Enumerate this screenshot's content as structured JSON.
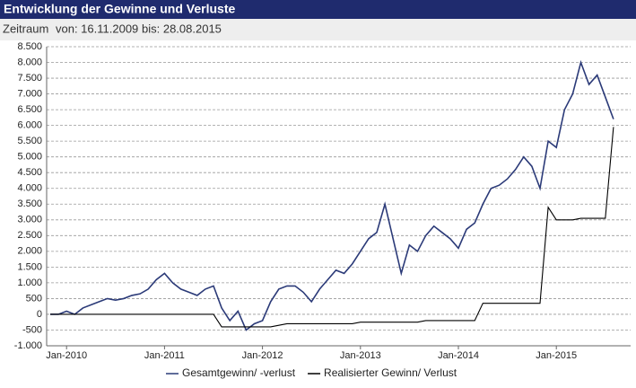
{
  "chart_data": {
    "type": "line",
    "title": "Entwicklung der Gewinne und Verluste",
    "period_label": "Zeitraum",
    "from": "von: 16.11.2009",
    "to": "bis: 28.08.2015",
    "x": [
      "Nov-2009",
      "Dec-2009",
      "Jan-2010",
      "Feb-2010",
      "Mar-2010",
      "Apr-2010",
      "May-2010",
      "Jun-2010",
      "Jul-2010",
      "Aug-2010",
      "Sep-2010",
      "Oct-2010",
      "Nov-2010",
      "Dec-2010",
      "Jan-2011",
      "Feb-2011",
      "Mar-2011",
      "Apr-2011",
      "May-2011",
      "Jun-2011",
      "Jul-2011",
      "Aug-2011",
      "Sep-2011",
      "Oct-2011",
      "Nov-2011",
      "Dec-2011",
      "Jan-2012",
      "Feb-2012",
      "Mar-2012",
      "Apr-2012",
      "May-2012",
      "Jun-2012",
      "Jul-2012",
      "Aug-2012",
      "Sep-2012",
      "Oct-2012",
      "Nov-2012",
      "Dec-2012",
      "Jan-2013",
      "Feb-2013",
      "Mar-2013",
      "Apr-2013",
      "May-2013",
      "Jun-2013",
      "Jul-2013",
      "Aug-2013",
      "Sep-2013",
      "Oct-2013",
      "Nov-2013",
      "Dec-2013",
      "Jan-2014",
      "Feb-2014",
      "Mar-2014",
      "Apr-2014",
      "May-2014",
      "Jun-2014",
      "Jul-2014",
      "Aug-2014",
      "Sep-2014",
      "Oct-2014",
      "Nov-2014",
      "Dec-2014",
      "Jan-2015",
      "Feb-2015",
      "Mar-2015",
      "Apr-2015",
      "May-2015",
      "Jun-2015",
      "Jul-2015",
      "Aug-2015"
    ],
    "series": [
      {
        "name": "Gesamtgewinn/ -verlust",
        "color": "#2b3a78",
        "values": [
          0,
          0,
          100,
          0,
          200,
          300,
          400,
          500,
          450,
          500,
          600,
          650,
          800,
          1100,
          1300,
          1000,
          800,
          700,
          600,
          800,
          900,
          200,
          -200,
          100,
          -500,
          -300,
          -200,
          400,
          800,
          900,
          900,
          700,
          400,
          800,
          1100,
          1400,
          1300,
          1600,
          2000,
          2400,
          2600,
          3500,
          2400,
          1300,
          2200,
          2000,
          2500,
          2800,
          2600,
          2400,
          2100,
          2700,
          2900,
          3500,
          4000,
          4100,
          4300,
          4600,
          5000,
          4700,
          4000,
          5500,
          5300,
          6500,
          7000,
          8000,
          7300,
          7600,
          6900,
          6200
        ]
      },
      {
        "name": "Realisierter Gewinn/ Verlust",
        "color": "#000000",
        "values": [
          0,
          0,
          0,
          0,
          0,
          0,
          0,
          0,
          0,
          0,
          0,
          0,
          0,
          0,
          0,
          0,
          0,
          0,
          0,
          0,
          0,
          -400,
          -400,
          -400,
          -400,
          -400,
          -400,
          -400,
          -350,
          -300,
          -300,
          -300,
          -300,
          -300,
          -300,
          -300,
          -300,
          -300,
          -250,
          -250,
          -250,
          -250,
          -250,
          -250,
          -250,
          -250,
          -200,
          -200,
          -200,
          -200,
          -200,
          -200,
          -200,
          350,
          350,
          350,
          350,
          350,
          350,
          350,
          350,
          3400,
          3000,
          3000,
          3000,
          3050,
          3050,
          3050,
          3050,
          5950
        ]
      }
    ],
    "ylim": [
      -1000,
      8500
    ],
    "yticks": [
      {
        "value": -1000,
        "label": "-1.000"
      },
      -500,
      0,
      500,
      {
        "value": 1000,
        "label": "1.000"
      },
      {
        "value": 1500,
        "label": "1.500"
      },
      {
        "value": 2000,
        "label": "2.000"
      },
      {
        "value": 2500,
        "label": "2.500"
      },
      {
        "value": 3000,
        "label": "3.000"
      },
      {
        "value": 3500,
        "label": "3.500"
      },
      {
        "value": 4000,
        "label": "4.000"
      },
      {
        "value": 4500,
        "label": "4.500"
      },
      {
        "value": 5000,
        "label": "5.000"
      },
      {
        "value": 5500,
        "label": "5.500"
      },
      {
        "value": 6000,
        "label": "6.000"
      },
      {
        "value": 6500,
        "label": "6.500"
      },
      {
        "value": 7000,
        "label": "7.000"
      },
      {
        "value": 7500,
        "label": "7.500"
      },
      {
        "value": 8000,
        "label": "8.000"
      },
      {
        "value": 8500,
        "label": "8.500"
      }
    ],
    "grid": true,
    "legend": "bottom"
  }
}
